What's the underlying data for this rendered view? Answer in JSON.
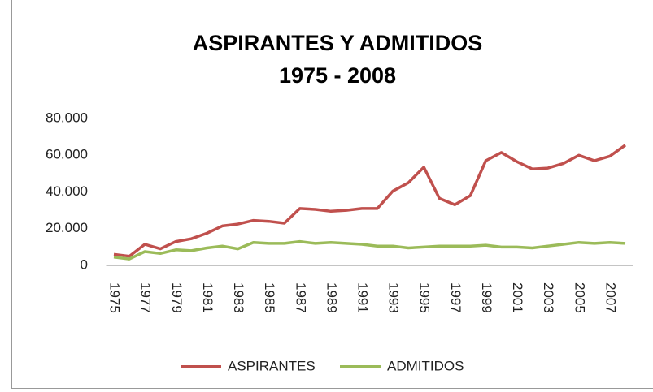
{
  "chart_data": {
    "type": "line",
    "title": "ASPIRANTES Y ADMITIDOS",
    "subtitle": "1975 - 2008",
    "categories": [
      "1975",
      null,
      "1977",
      null,
      "1979",
      null,
      "1981",
      null,
      "1983",
      null,
      "1985",
      null,
      "1987",
      null,
      "1989",
      null,
      "1991",
      null,
      "1993",
      null,
      "1995",
      null,
      "1997",
      null,
      "1999",
      null,
      "2001",
      null,
      "2003",
      null,
      "2005",
      null,
      "2007",
      null
    ],
    "series": [
      {
        "name": "ASPIRANTES",
        "color": "#c0504d",
        "values": [
          6000,
          5000,
          11500,
          9000,
          13000,
          14500,
          17500,
          21500,
          22500,
          24500,
          24000,
          23000,
          31000,
          30500,
          29500,
          30000,
          31000,
          31000,
          40500,
          45000,
          53500,
          36500,
          33000,
          38000,
          57000,
          61500,
          56500,
          52500,
          53000,
          55500,
          60000,
          57000,
          59500,
          65500
        ]
      },
      {
        "name": "ADMITIDOS",
        "color": "#9bbb59",
        "values": [
          4500,
          3500,
          7500,
          6500,
          8500,
          8000,
          9500,
          10500,
          9000,
          12500,
          12000,
          12000,
          13000,
          12000,
          12500,
          12000,
          11500,
          10500,
          10500,
          9500,
          10000,
          10500,
          10500,
          10500,
          11000,
          10000,
          10000,
          9500,
          10500,
          11500,
          12500,
          12000,
          12500,
          12000
        ]
      }
    ],
    "ylim": [
      0,
      80000
    ],
    "yticks": [
      0,
      {
        "value": 20000,
        "label": "20.000"
      },
      {
        "value": 40000,
        "label": "40.000"
      },
      {
        "value": 60000,
        "label": "60.000"
      },
      {
        "value": 80000,
        "label": "80.000"
      }
    ],
    "grid": false,
    "legend": "bottom"
  }
}
